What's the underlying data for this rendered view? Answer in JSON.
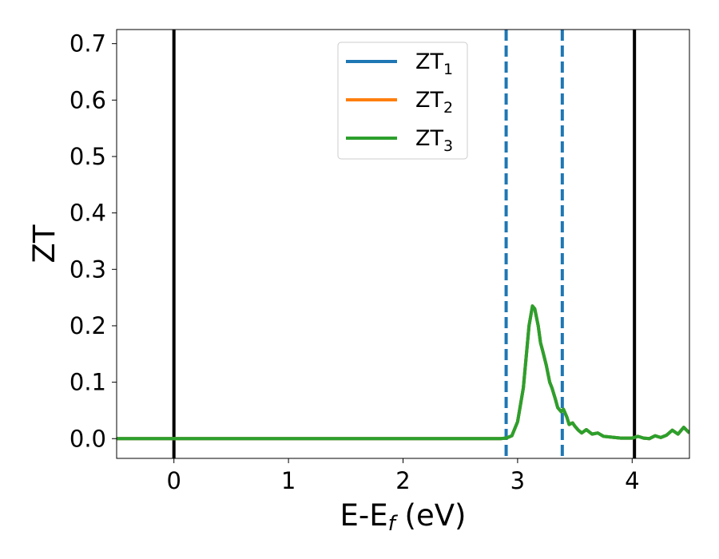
{
  "chart_data": {
    "type": "line",
    "xlabel_main": "E-E",
    "xlabel_sub": "f",
    "xlabel_unit": " (eV)",
    "ylabel": "ZT",
    "xlim": [
      -0.5,
      4.5
    ],
    "ylim": [
      -0.035,
      0.725
    ],
    "x_ticks": [
      0,
      1,
      2,
      3,
      4
    ],
    "x_tick_labels": [
      "0",
      "1",
      "2",
      "3",
      "4"
    ],
    "y_ticks": [
      0.0,
      0.1,
      0.2,
      0.3,
      0.4,
      0.5,
      0.6,
      0.7
    ],
    "y_tick_labels": [
      "0.0",
      "0.1",
      "0.2",
      "0.3",
      "0.4",
      "0.5",
      "0.6",
      "0.7"
    ],
    "grid": false,
    "legend_position": "top-center",
    "vertical_lines": [
      {
        "x": 0.0,
        "style": "solid",
        "color": "#000000"
      },
      {
        "x": 4.02,
        "style": "solid",
        "color": "#000000"
      },
      {
        "x": 2.9,
        "style": "dashed",
        "color": "#1f77b4"
      },
      {
        "x": 3.39,
        "style": "dashed",
        "color": "#1f77b4"
      }
    ],
    "series": [
      {
        "name_main": "ZT",
        "name_sub": "1",
        "color": "#1f77b4",
        "x": [
          -0.5,
          2.85,
          2.9,
          2.95,
          3.0,
          3.05,
          3.1,
          3.13,
          3.15,
          3.18,
          3.2,
          3.22,
          3.25,
          3.28,
          3.3,
          3.33,
          3.35,
          3.38,
          3.4,
          3.43,
          3.45,
          3.48,
          3.5,
          3.53,
          3.56,
          3.6,
          3.65,
          3.7,
          3.75,
          3.8,
          3.9,
          4.0,
          4.05,
          4.1,
          4.15,
          4.2,
          4.25,
          4.3,
          4.35,
          4.4,
          4.45,
          4.5
        ],
        "y": [
          0.0,
          0.0,
          0.001,
          0.005,
          0.03,
          0.09,
          0.2,
          0.235,
          0.23,
          0.2,
          0.17,
          0.155,
          0.13,
          0.1,
          0.09,
          0.07,
          0.055,
          0.048,
          0.052,
          0.038,
          0.025,
          0.028,
          0.022,
          0.015,
          0.01,
          0.016,
          0.008,
          0.01,
          0.004,
          0.003,
          0.001,
          0.001,
          0.004,
          0.001,
          0.0,
          0.005,
          0.002,
          0.006,
          0.015,
          0.008,
          0.02,
          0.01
        ]
      },
      {
        "name_main": "ZT",
        "name_sub": "2",
        "color": "#ff7f0e",
        "x": [
          -0.5,
          2.85,
          2.9,
          2.95,
          3.0,
          3.05,
          3.1,
          3.13,
          3.15,
          3.18,
          3.2,
          3.22,
          3.25,
          3.28,
          3.3,
          3.33,
          3.35,
          3.38,
          3.4,
          3.43,
          3.45,
          3.48,
          3.5,
          3.53,
          3.56,
          3.6,
          3.65,
          3.7,
          3.75,
          3.8,
          3.9,
          4.0,
          4.05,
          4.1,
          4.15,
          4.2,
          4.25,
          4.3,
          4.35,
          4.4,
          4.45,
          4.5
        ],
        "y": [
          0.0,
          0.0,
          0.001,
          0.005,
          0.03,
          0.09,
          0.2,
          0.235,
          0.23,
          0.2,
          0.17,
          0.155,
          0.13,
          0.1,
          0.09,
          0.07,
          0.055,
          0.048,
          0.052,
          0.038,
          0.025,
          0.028,
          0.022,
          0.015,
          0.01,
          0.016,
          0.008,
          0.01,
          0.004,
          0.003,
          0.001,
          0.001,
          0.004,
          0.001,
          0.0,
          0.005,
          0.002,
          0.006,
          0.015,
          0.008,
          0.02,
          0.01
        ]
      },
      {
        "name_main": "ZT",
        "name_sub": "3",
        "color": "#2ca02c",
        "x": [
          -0.5,
          2.85,
          2.9,
          2.95,
          3.0,
          3.05,
          3.1,
          3.13,
          3.15,
          3.18,
          3.2,
          3.22,
          3.25,
          3.28,
          3.3,
          3.33,
          3.35,
          3.38,
          3.4,
          3.43,
          3.45,
          3.48,
          3.5,
          3.53,
          3.56,
          3.6,
          3.65,
          3.7,
          3.75,
          3.8,
          3.9,
          4.0,
          4.05,
          4.1,
          4.15,
          4.2,
          4.25,
          4.3,
          4.35,
          4.4,
          4.45,
          4.5
        ],
        "y": [
          0.0,
          0.0,
          0.001,
          0.005,
          0.03,
          0.09,
          0.2,
          0.235,
          0.23,
          0.2,
          0.17,
          0.155,
          0.13,
          0.1,
          0.09,
          0.07,
          0.055,
          0.048,
          0.052,
          0.038,
          0.025,
          0.028,
          0.022,
          0.015,
          0.01,
          0.016,
          0.008,
          0.01,
          0.004,
          0.003,
          0.001,
          0.001,
          0.004,
          0.001,
          0.0,
          0.005,
          0.002,
          0.006,
          0.015,
          0.008,
          0.02,
          0.01
        ]
      }
    ]
  }
}
